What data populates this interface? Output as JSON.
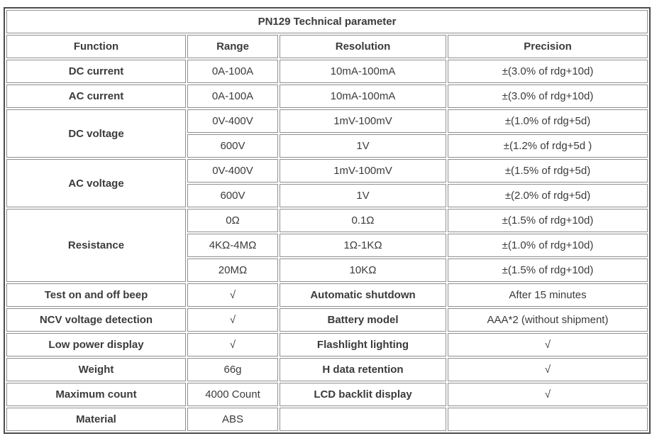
{
  "table": {
    "title": "PN129 Technical parameter",
    "header": {
      "function": "Function",
      "range": "Range",
      "resolution": "Resolution",
      "precision": "Precision"
    },
    "dc_current": {
      "function": "DC current",
      "range": "0A-100A",
      "resolution": "10mA-100mA",
      "precision": "±(3.0% of rdg+10d)"
    },
    "ac_current": {
      "function": "AC current",
      "range": "0A-100A",
      "resolution": "10mA-100mA",
      "precision": "±(3.0% of rdg+10d)"
    },
    "dc_voltage": {
      "function": "DC voltage",
      "rows": [
        {
          "range": "0V-400V",
          "resolution": "1mV-100mV",
          "precision": "±(1.0% of rdg+5d)"
        },
        {
          "range": "600V",
          "resolution": "1V",
          "precision": "±(1.2% of rdg+5d )"
        }
      ]
    },
    "ac_voltage": {
      "function": "AC voltage",
      "rows": [
        {
          "range": "0V-400V",
          "resolution": "1mV-100mV",
          "precision": "±(1.5% of rdg+5d)"
        },
        {
          "range": "600V",
          "resolution": "1V",
          "precision": "±(2.0% of rdg+5d)"
        }
      ]
    },
    "resistance": {
      "function": "Resistance",
      "rows": [
        {
          "range": "0Ω",
          "resolution": "0.1Ω",
          "precision": "±(1.5% of rdg+10d)"
        },
        {
          "range": "4KΩ-4MΩ",
          "resolution": "1Ω-1KΩ",
          "precision": "±(1.0% of rdg+10d)"
        },
        {
          "range": "20MΩ",
          "resolution": "10KΩ",
          "precision": "±(1.5% of rdg+10d)"
        }
      ]
    },
    "features": [
      {
        "label": "Test on and off beep",
        "value": "√",
        "label2": "Automatic shutdown",
        "value2": "After 15 minutes"
      },
      {
        "label": "NCV voltage detection",
        "value": "√",
        "label2": "Battery model",
        "value2": "AAA*2 (without shipment)"
      },
      {
        "label": "Low power display",
        "value": "√",
        "label2": "Flashlight lighting",
        "value2": "√"
      },
      {
        "label": "Weight",
        "value": "66g",
        "label2": "H data retention",
        "value2": "√"
      },
      {
        "label": "Maximum count",
        "value": "4000 Count",
        "label2": "LCD backlit display",
        "value2": "√"
      },
      {
        "label": "Material",
        "value": "ABS",
        "label2": "",
        "value2": ""
      }
    ],
    "colors": {
      "check_mark": "#cf7a76",
      "highlight_red": "#c9504c",
      "highlight_blue": "#4f81bd",
      "text": "#3b3b3b",
      "outer_border": "#4d4d4d",
      "cell_border": "#8f8f8f"
    }
  }
}
